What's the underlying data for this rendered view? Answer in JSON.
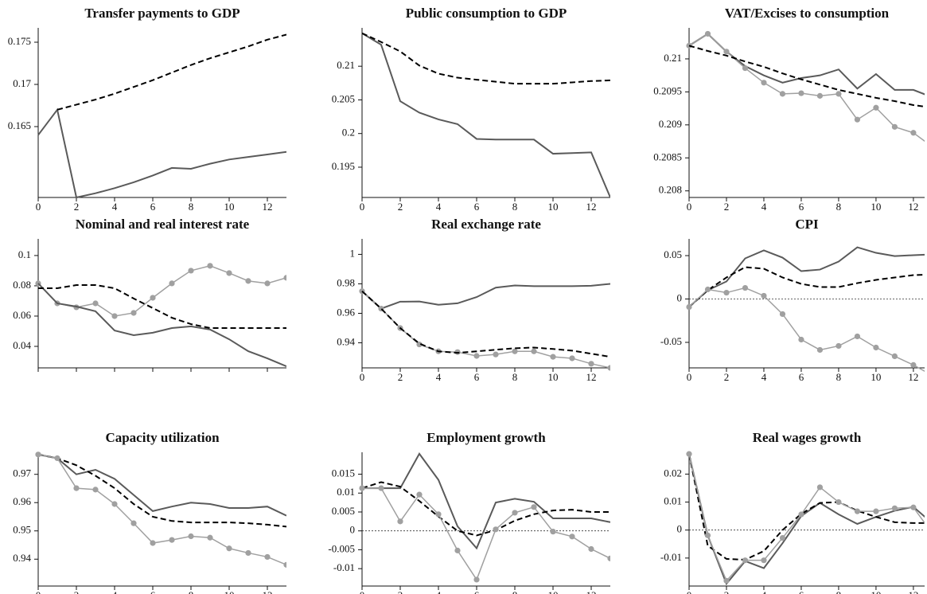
{
  "chart_data": [
    {
      "type": "line",
      "title": "Transfer payments to GDP",
      "x": [
        0,
        1,
        2,
        3,
        4,
        5,
        6,
        7,
        8,
        9,
        10,
        11,
        12,
        13
      ],
      "xlim": [
        0,
        13
      ],
      "xticks": [
        0,
        2,
        4,
        6,
        8,
        10,
        12
      ],
      "ylim": [
        0.1566,
        0.1767
      ],
      "yticks": [
        0.165,
        0.17,
        0.175
      ],
      "zero_line": false,
      "series": [
        {
          "style": "solid",
          "color": "#5a5a5a",
          "values": [
            0.164,
            0.167,
            0.1566,
            0.1571,
            0.1577,
            0.1584,
            0.1592,
            0.1601,
            0.16,
            0.1606,
            0.1611,
            0.1614,
            0.1617,
            0.162
          ]
        },
        {
          "style": "dashed",
          "color": "#000000",
          "values": [
            null,
            0.167,
            0.1676,
            0.1682,
            0.1689,
            0.1697,
            0.1705,
            0.1714,
            0.1723,
            0.1731,
            0.1738,
            0.1745,
            0.1753,
            0.1759
          ]
        }
      ]
    },
    {
      "type": "line",
      "title": "Public consumption to GDP",
      "x": [
        0,
        1,
        2,
        3,
        4,
        5,
        6,
        7,
        8,
        9,
        10,
        11,
        12,
        13
      ],
      "xlim": [
        0,
        13
      ],
      "xticks": [
        0,
        2,
        4,
        6,
        8,
        10,
        12
      ],
      "ylim": [
        0.1905,
        0.2157
      ],
      "yticks": [
        0.195,
        0.2,
        0.205,
        0.21
      ],
      "zero_line": false,
      "series": [
        {
          "style": "solid",
          "color": "#5a5a5a",
          "values": [
            0.2149,
            0.2132,
            0.2048,
            0.2031,
            0.2021,
            0.2014,
            0.1992,
            0.1991,
            0.1991,
            0.1991,
            0.197,
            0.1971,
            0.1972,
            0.1905
          ]
        },
        {
          "style": "dashed",
          "color": "#000000",
          "values": [
            0.2149,
            0.2136,
            0.2122,
            0.2101,
            0.2089,
            0.2083,
            0.208,
            0.2077,
            0.2074,
            0.2074,
            0.2074,
            0.2076,
            0.2078,
            0.2079
          ]
        }
      ]
    },
    {
      "type": "line",
      "title": "VAT/Excises to consumption",
      "x": [
        0,
        1,
        2,
        3,
        4,
        5,
        6,
        7,
        8,
        9,
        10,
        11,
        12,
        13
      ],
      "xlim": [
        0,
        12.6
      ],
      "xticks": [
        0,
        2,
        4,
        6,
        8,
        10,
        12
      ],
      "ylim": [
        0.2079,
        0.21047
      ],
      "yticks": [
        0.208,
        0.2085,
        0.209,
        0.2095,
        0.21
      ],
      "zero_line": false,
      "series": [
        {
          "style": "solid",
          "color": "#5a5a5a",
          "values": [
            0.2102,
            0.21038,
            0.21011,
            0.20989,
            0.20975,
            0.20964,
            0.20971,
            0.20975,
            0.20984,
            0.20955,
            0.20977,
            0.20953,
            0.20953,
            0.20942
          ]
        },
        {
          "style": "markers",
          "color": "#a0a0a0",
          "values": [
            0.2102,
            0.21038,
            0.21011,
            0.20986,
            0.20964,
            0.20947,
            0.20948,
            0.20944,
            0.20947,
            0.20908,
            0.20926,
            0.20897,
            0.20888,
            0.20867
          ]
        },
        {
          "style": "dashed",
          "color": "#000000",
          "values": [
            0.2102,
            0.21012,
            0.21005,
            0.20996,
            0.20988,
            0.20978,
            0.20969,
            0.20961,
            0.20953,
            0.20947,
            0.20941,
            0.20936,
            0.2093,
            0.20926
          ]
        }
      ]
    },
    {
      "type": "line",
      "title": "Nominal and real interest rate",
      "x": [
        0,
        1,
        2,
        3,
        4,
        5,
        6,
        7,
        8,
        9,
        10,
        11,
        12,
        13
      ],
      "xlim": [
        0,
        13
      ],
      "xticks": [
        0,
        2,
        4,
        6,
        8,
        10,
        12
      ],
      "xtick_labels": false,
      "ylim": [
        0.0258,
        0.111
      ],
      "yticks": [
        0.04,
        0.06,
        0.08,
        0.1
      ],
      "zero_line": false,
      "series": [
        {
          "style": "markers",
          "color": "#a0a0a0",
          "values": [
            0.0816,
            0.0684,
            0.0658,
            0.0684,
            0.06,
            0.0621,
            0.0721,
            0.0816,
            0.09,
            0.0932,
            0.0884,
            0.0832,
            0.0816,
            0.0853
          ]
        },
        {
          "style": "solid",
          "color": "#5a5a5a",
          "values": [
            0.0816,
            0.0684,
            0.0663,
            0.0632,
            0.0505,
            0.0474,
            0.049,
            0.0521,
            0.0532,
            0.0511,
            0.0447,
            0.0368,
            0.0321,
            0.0268
          ]
        },
        {
          "style": "dashed",
          "color": "#000000",
          "values": [
            0.0784,
            0.0784,
            0.0805,
            0.0805,
            0.0784,
            0.0716,
            0.0653,
            0.0589,
            0.0547,
            0.0521,
            0.0521,
            0.0521,
            0.0521,
            0.0521
          ]
        }
      ]
    },
    {
      "type": "line",
      "title": "Real exchange rate",
      "x": [
        0,
        1,
        2,
        3,
        4,
        5,
        6,
        7,
        8,
        9,
        10,
        11,
        12,
        13
      ],
      "xlim": [
        0,
        13
      ],
      "xticks": [
        0,
        2,
        4,
        6,
        8,
        10,
        12
      ],
      "ylim": [
        0.923,
        1.0105
      ],
      "yticks": [
        0.94,
        0.96,
        0.98,
        1
      ],
      "zero_line": false,
      "series": [
        {
          "style": "solid",
          "color": "#5a5a5a",
          "values": [
            0.975,
            0.9632,
            0.9679,
            0.968,
            0.9658,
            0.9668,
            0.971,
            0.9774,
            0.9789,
            0.9784,
            0.9784,
            0.9784,
            0.9787,
            0.98
          ]
        },
        {
          "style": "markers",
          "color": "#a0a0a0",
          "values": [
            0.975,
            0.9632,
            0.95,
            0.9389,
            0.9342,
            0.9337,
            0.9311,
            0.9321,
            0.9342,
            0.9342,
            0.9305,
            0.9295,
            0.9258,
            0.923
          ]
        },
        {
          "style": "dashed",
          "color": "#000000",
          "values": [
            0.975,
            0.9632,
            0.95,
            0.9395,
            0.9342,
            0.9332,
            0.9342,
            0.9353,
            0.9363,
            0.9368,
            0.9358,
            0.9347,
            0.9326,
            0.9305
          ]
        }
      ]
    },
    {
      "type": "line",
      "title": "CPI",
      "x": [
        0,
        1,
        2,
        3,
        4,
        5,
        6,
        7,
        8,
        9,
        10,
        11,
        12,
        13
      ],
      "xlim": [
        0,
        12.6
      ],
      "xticks": [
        0,
        2,
        4,
        6,
        8,
        10,
        12
      ],
      "ylim": [
        -0.0794,
        0.0693
      ],
      "yticks": [
        -0.05,
        0,
        0.05
      ],
      "zero_line": true,
      "series": [
        {
          "style": "solid",
          "color": "#5a5a5a",
          "values": [
            -0.0092,
            0.0101,
            0.0202,
            0.0468,
            0.056,
            0.0477,
            0.0321,
            0.0339,
            0.0431,
            0.0596,
            0.0532,
            0.0495,
            0.0505,
            0.0515
          ]
        },
        {
          "style": "dashed",
          "color": "#000000",
          "values": [
            -0.0092,
            0.0101,
            0.0248,
            0.0367,
            0.0349,
            0.0248,
            0.0174,
            0.0138,
            0.0138,
            0.0183,
            0.022,
            0.0248,
            0.0275,
            0.0284
          ]
        },
        {
          "style": "markers",
          "color": "#a0a0a0",
          "values": [
            -0.0092,
            0.011,
            0.0073,
            0.0128,
            0.0037,
            -0.0174,
            -0.0468,
            -0.0587,
            -0.0541,
            -0.0431,
            -0.056,
            -0.066,
            -0.0761,
            -0.088
          ]
        }
      ]
    },
    {
      "type": "line",
      "title": "Capacity utilization",
      "x": [
        0,
        1,
        2,
        3,
        4,
        5,
        6,
        7,
        8,
        9,
        10,
        11,
        12,
        13
      ],
      "xlim": [
        0,
        13
      ],
      "xticks": [
        0,
        2,
        4,
        6,
        8,
        10,
        12
      ],
      "ylim": [
        0.9305,
        0.9778
      ],
      "yticks": [
        0.94,
        0.95,
        0.96,
        0.97
      ],
      "zero_line": false,
      "series": [
        {
          "style": "solid",
          "color": "#5a5a5a",
          "values": [
            0.977,
            0.9757,
            0.97,
            0.9716,
            0.9684,
            0.9627,
            0.957,
            0.9586,
            0.96,
            0.9595,
            0.9581,
            0.9581,
            0.9586,
            0.9554
          ]
        },
        {
          "style": "dashed",
          "color": "#000000",
          "values": [
            0.977,
            0.9757,
            0.9732,
            0.9695,
            0.9651,
            0.9595,
            0.955,
            0.9535,
            0.953,
            0.953,
            0.953,
            0.9527,
            0.9522,
            0.9515
          ]
        },
        {
          "style": "markers",
          "color": "#a0a0a0",
          "values": [
            0.977,
            0.9757,
            0.9651,
            0.9646,
            0.9595,
            0.9527,
            0.9457,
            0.9468,
            0.9481,
            0.9476,
            0.9438,
            0.9422,
            0.9408,
            0.938
          ]
        }
      ]
    },
    {
      "type": "line",
      "title": "Employment growth",
      "x": [
        0,
        1,
        2,
        3,
        4,
        5,
        6,
        7,
        8,
        9,
        10,
        11,
        12,
        13
      ],
      "xlim": [
        0,
        13
      ],
      "xticks": [
        0,
        2,
        4,
        6,
        8,
        10,
        12
      ],
      "ylim": [
        -0.0146,
        0.0208
      ],
      "yticks": [
        -0.01,
        -0.005,
        0,
        0.005,
        0.01,
        0.015
      ],
      "zero_line": true,
      "series": [
        {
          "style": "solid",
          "color": "#5a5a5a",
          "values": [
            0.0113,
            0.0113,
            0.0113,
            0.0204,
            0.0135,
            0.0012,
            -0.0046,
            0.0075,
            0.0085,
            0.0077,
            0.0033,
            0.0033,
            0.0033,
            0.0023
          ]
        },
        {
          "style": "dashed",
          "color": "#000000",
          "values": [
            0.0113,
            0.0129,
            0.0117,
            0.0079,
            0.0038,
            0,
            -0.0012,
            0.0002,
            0.0027,
            0.0044,
            0.0054,
            0.0056,
            0.005,
            0.005
          ]
        },
        {
          "style": "markers",
          "color": "#a0a0a0",
          "values": [
            0.0113,
            0.0113,
            0.0025,
            0.0096,
            0.0044,
            -0.0052,
            -0.0129,
            0.0004,
            0.0048,
            0.0063,
            -0.0002,
            -0.0015,
            -0.0048,
            -0.0073
          ]
        }
      ]
    },
    {
      "type": "line",
      "title": "Real wages growth",
      "x": [
        0,
        1,
        2,
        3,
        4,
        5,
        6,
        7,
        8,
        9,
        10,
        11,
        12,
        13
      ],
      "xlim": [
        0,
        12.6
      ],
      "xticks": [
        0,
        2,
        4,
        6,
        8,
        10,
        12
      ],
      "ylim": [
        -0.02,
        0.0278
      ],
      "yticks": [
        -0.01,
        0,
        0.01,
        0.02
      ],
      "zero_line": true,
      "series": [
        {
          "style": "solid",
          "color": "#5a5a5a",
          "values": [
            0.0272,
            -0.0019,
            -0.0192,
            -0.0111,
            -0.0136,
            -0.0047,
            0.005,
            0.0097,
            0.0056,
            0.0022,
            0.0047,
            0.0069,
            0.0083,
            0.0025
          ]
        },
        {
          "style": "dashed",
          "color": "#000000",
          "values": [
            0.0272,
            -0.0056,
            -0.0103,
            -0.0106,
            -0.0075,
            0,
            0.0058,
            0.0097,
            0.01,
            0.0069,
            0.0047,
            0.0028,
            0.0025,
            0.0025
          ]
        },
        {
          "style": "markers",
          "color": "#a0a0a0",
          "values": [
            0.0272,
            -0.0019,
            -0.0181,
            -0.0108,
            -0.0108,
            -0.0028,
            0.0056,
            0.0153,
            0.01,
            0.0067,
            0.0067,
            0.0078,
            0.0081,
            -0.0011
          ]
        }
      ]
    }
  ]
}
